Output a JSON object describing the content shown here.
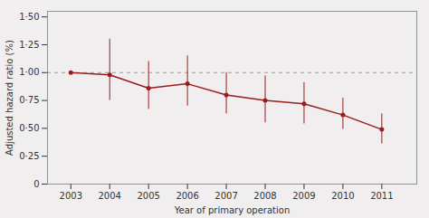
{
  "chart_data": {
    "type": "line",
    "x": [
      2003,
      2004,
      2005,
      2006,
      2007,
      2008,
      2009,
      2010,
      2011
    ],
    "values": [
      1.0,
      0.98,
      0.86,
      0.9,
      0.8,
      0.75,
      0.72,
      0.62,
      0.49
    ],
    "ci_lower": [
      1.0,
      0.75,
      0.67,
      0.7,
      0.63,
      0.55,
      0.54,
      0.49,
      0.36
    ],
    "ci_upper": [
      1.0,
      1.3,
      1.1,
      1.15,
      1.0,
      0.97,
      0.91,
      0.77,
      0.63
    ],
    "color": "#9b1c1c",
    "marker": "circle",
    "reference_line": {
      "y": 1.0,
      "color": "#888888",
      "line_style": "dashed"
    },
    "background": "#f0eeee",
    "xlabel": "Year of primary operation",
    "ylabel": "Adjusted hazard ratio (%)",
    "xlim": [
      2002.4,
      2011.9
    ],
    "xticks": [
      2003,
      2004,
      2005,
      2006,
      2007,
      2008,
      2009,
      2010,
      2011
    ],
    "ylim": [
      0,
      1.55
    ],
    "yticks": [
      0,
      {
        "value": 0.25,
        "label": "0·25"
      },
      {
        "value": 0.5,
        "label": "0·50"
      },
      {
        "value": 0.75,
        "label": "0·75"
      },
      {
        "value": 1.0,
        "label": "1·00"
      },
      {
        "value": 1.25,
        "label": "1·25"
      },
      {
        "value": 1.5,
        "label": "1·50"
      }
    ],
    "grid": false
  }
}
